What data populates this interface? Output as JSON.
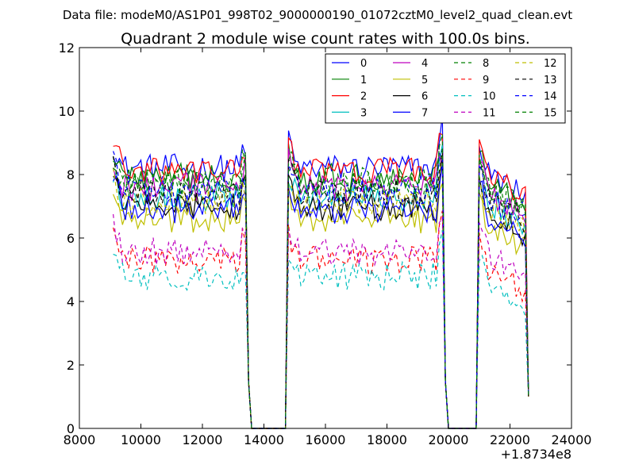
{
  "figure": {
    "suptitle": "Data file: modeM0/AS1P01_998T02_9000000190_01072cztM0_level2_quad_clean.evt"
  },
  "chart_data": {
    "type": "line",
    "title": "Quadrant 2 module wise count rates with 100.0s bins.",
    "xlabel": "",
    "ylabel": "",
    "xlim": [
      8000,
      24000
    ],
    "ylim": [
      0,
      12
    ],
    "x_offset_label": "+1.8734e8",
    "xticks": [
      8000,
      10000,
      12000,
      14000,
      16000,
      18000,
      20000,
      22000,
      24000
    ],
    "yticks": [
      0,
      2,
      4,
      6,
      8,
      10,
      12
    ],
    "grid": false,
    "legend_location": "top-right",
    "legend_columns": 4,
    "segments": [
      {
        "start": 9100,
        "end": 13400
      },
      {
        "start": 14800,
        "end": 19800
      },
      {
        "start": 21000,
        "end": 22500
      }
    ],
    "series": [
      {
        "name": "0",
        "color": "#0000ff",
        "style": "solid",
        "base_level": 8.2,
        "segment_start_level": 9.0
      },
      {
        "name": "1",
        "color": "#008000",
        "style": "solid",
        "base_level": 7.9,
        "segment_start_level": 8.8
      },
      {
        "name": "2",
        "color": "#ff0000",
        "style": "solid",
        "base_level": 8.1,
        "segment_start_level": 9.2
      },
      {
        "name": "3",
        "color": "#00bfbf",
        "style": "solid",
        "base_level": 7.3,
        "segment_start_level": 8.0
      },
      {
        "name": "4",
        "color": "#bf00bf",
        "style": "solid",
        "base_level": 7.6,
        "segment_start_level": 8.4
      },
      {
        "name": "5",
        "color": "#bfbf00",
        "style": "solid",
        "base_level": 6.6,
        "segment_start_level": 7.5
      },
      {
        "name": "6",
        "color": "#000000",
        "style": "solid",
        "base_level": 7.0,
        "segment_start_level": 8.0
      },
      {
        "name": "7",
        "color": "#0000ff",
        "style": "solid",
        "base_level": 6.9,
        "segment_start_level": 7.8
      },
      {
        "name": "8",
        "color": "#008000",
        "style": "dashed",
        "base_level": 7.7,
        "segment_start_level": 8.5
      },
      {
        "name": "9",
        "color": "#ff0000",
        "style": "dashed",
        "base_level": 5.3,
        "segment_start_level": 6.2
      },
      {
        "name": "10",
        "color": "#00bfbf",
        "style": "dashed",
        "base_level": 4.8,
        "segment_start_level": 5.3
      },
      {
        "name": "11",
        "color": "#bf00bf",
        "style": "dashed",
        "base_level": 5.6,
        "segment_start_level": 6.5
      },
      {
        "name": "12",
        "color": "#bfbf00",
        "style": "dashed",
        "base_level": 7.1,
        "segment_start_level": 7.9
      },
      {
        "name": "13",
        "color": "#000000",
        "style": "dashed",
        "base_level": 7.4,
        "segment_start_level": 8.2
      },
      {
        "name": "14",
        "color": "#0000ff",
        "style": "dashed",
        "base_level": 7.5,
        "segment_start_level": 8.3
      },
      {
        "name": "15",
        "color": "#008000",
        "style": "dashed",
        "base_level": 7.8,
        "segment_start_level": 8.6
      }
    ]
  }
}
